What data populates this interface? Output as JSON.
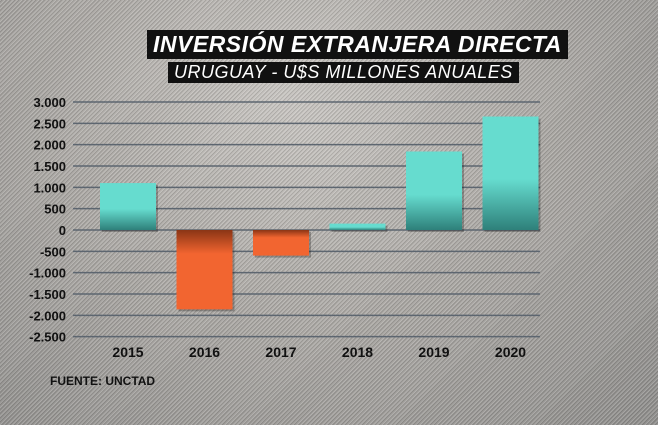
{
  "chart_data": {
    "type": "bar",
    "title": "INVERSIÓN EXTRANJERA DIRECTA",
    "subtitle": "URUGUAY - U$S MILLONES  ANUALES",
    "categories": [
      "2015",
      "2016",
      "2017",
      "2018",
      "2019",
      "2020"
    ],
    "values": [
      1100,
      -1860,
      -600,
      150,
      1840,
      2660
    ],
    "ylim": [
      -2500,
      3000
    ],
    "yticks": [
      3000,
      2500,
      2000,
      1500,
      1000,
      500,
      0,
      -500,
      -1000,
      -1500,
      -2000,
      -2500
    ],
    "ytick_labels": [
      "3.000",
      "2.500",
      "2.000",
      "1.500",
      "1.000",
      "500",
      "0",
      "-500",
      "-1.000",
      "-1.500",
      "-2.000",
      "-2.500"
    ],
    "grid": true,
    "colors": {
      "positive": "#66dccf",
      "negative": "#f26530"
    }
  },
  "source": "FUENTE: UNCTAD"
}
